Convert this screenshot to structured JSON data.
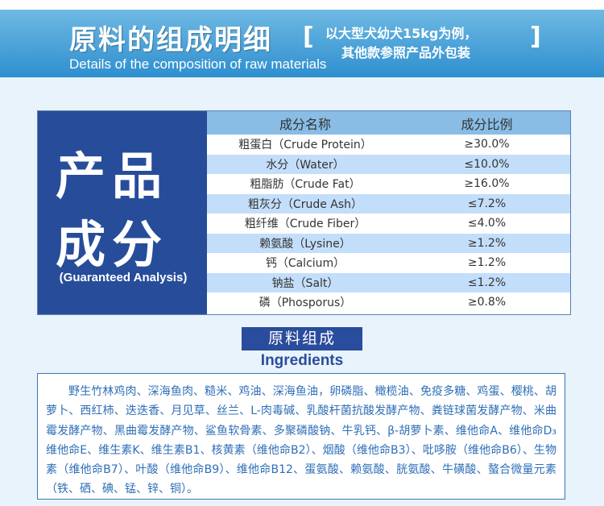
{
  "header": {
    "title_cn": "原料的组成明细",
    "title_en": "Details of the composition of raw materials",
    "bracket_left": "[",
    "bracket_right": "]",
    "note_line1": "以大型犬幼犬15kg为例，",
    "note_line2": "其他款参照产品外包装"
  },
  "analysis": {
    "big_line1": "产品",
    "big_line2": "成分",
    "label_en": "(Guaranteed Analysis)",
    "columns": [
      "成分名称",
      "成分比例"
    ],
    "rows": [
      {
        "name": "粗蛋白（Crude Protein）",
        "value": "≥30.0%"
      },
      {
        "name": "水分（Water）",
        "value": "≤10.0%"
      },
      {
        "name": "粗脂肪（Crude Fat）",
        "value": "≥16.0%"
      },
      {
        "name": "粗灰分（Crude Ash）",
        "value": "≤7.2%"
      },
      {
        "name": "粗纤维（Crude Fiber）",
        "value": "≤4.0%"
      },
      {
        "name": "赖氨酸（Lysine）",
        "value": "≥1.2%"
      },
      {
        "name": "钙（Calcium）",
        "value": "≥1.2%"
      },
      {
        "name": "钠盐（Salt）",
        "value": "≤1.2%"
      },
      {
        "name": "磷（Phosporus）",
        "value": "≥0.8%"
      }
    ]
  },
  "ingredients": {
    "title_cn": "原料组成",
    "title_en": "Ingredients",
    "text": "野生竹林鸡肉、深海鱼肉、糙米、鸡油、深海鱼油，卵磷脂、橄榄油、免疫多糖、鸡蛋、樱桃、胡萝卜、西红柿、迭迭香、月见草、丝兰、L-肉毒碱、乳酸杆菌抗酸发酵产物、粪链球菌发酵产物、米曲霉发酵产物、黑曲霉发酵产物、鲨鱼软骨素、多聚磷酸钠、牛乳钙、β-胡萝卜素、维他命A、维他命D₃维他命E、维生素K、维生素B1、核黄素（维他命B2）、烟酸（维他命B3）、吡哆胺（维他命B6）、生物素（维他命B7）、叶酸（维他命B9）、维他命B12、蛋氨酸、赖氨酸、胱氨酸、牛磺酸、螯合微量元素（铁、硒、碘、锰、锌、铜）。"
  },
  "colors": {
    "header_blue": "#2e8fcf",
    "panel_navy": "#274d9a",
    "row_alt": "#c3defa",
    "ingredient_text": "#2e6fb7"
  }
}
